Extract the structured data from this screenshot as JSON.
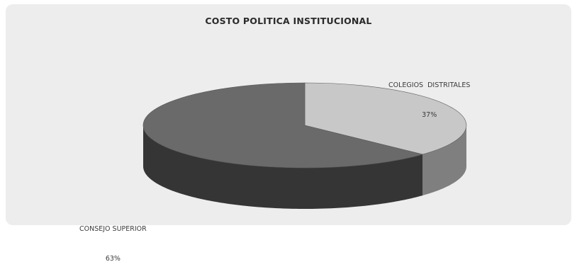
{
  "chart_data": {
    "type": "pie",
    "title": "COSTO POLITICA INSTITUCIONAL",
    "three_d": true,
    "legend": "none",
    "slices": [
      {
        "label": "COLEGIOS  DISTRITALES",
        "value": 37,
        "value_label": "37%",
        "color": "#c8c8c8"
      },
      {
        "label": "CONSEJO SUPERIOR",
        "value": 63,
        "value_label": "63%",
        "color": "#6a6a6a"
      }
    ]
  }
}
